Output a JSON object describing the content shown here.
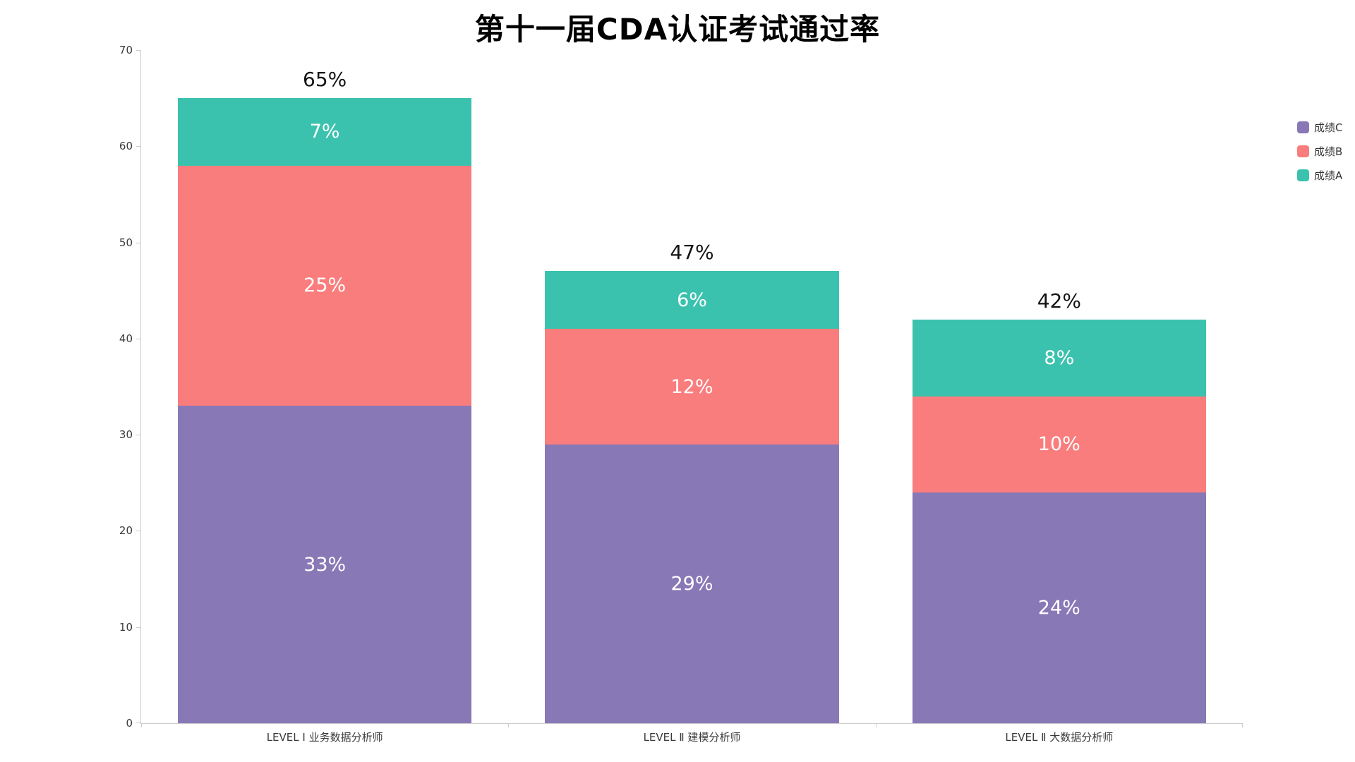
{
  "title": "第十一届CDA认证考试通过率",
  "chart_data": {
    "type": "bar",
    "stacked": true,
    "title": "第十一届CDA认证考试通过率",
    "categories": [
      "LEVEL Ⅰ 业务数据分析师",
      "LEVEL Ⅱ 建模分析师",
      "LEVEL Ⅱ 大数据分析师"
    ],
    "series": [
      {
        "name": "成绩C",
        "color": "#8878b6",
        "values": [
          33,
          29,
          24
        ]
      },
      {
        "name": "成绩B",
        "color": "#fa7d7d",
        "values": [
          25,
          12,
          10
        ]
      },
      {
        "name": "成绩A",
        "color": "#3bc2ae",
        "values": [
          7,
          6,
          8
        ]
      }
    ],
    "totals": [
      65,
      47,
      42
    ],
    "value_suffix": "%",
    "ylim": [
      0,
      70
    ],
    "yticks": [
      0,
      10,
      20,
      30,
      40,
      50,
      60,
      70
    ],
    "grid": false,
    "legend_position": "right",
    "legend_order": [
      "成绩C",
      "成绩B",
      "成绩A"
    ]
  }
}
